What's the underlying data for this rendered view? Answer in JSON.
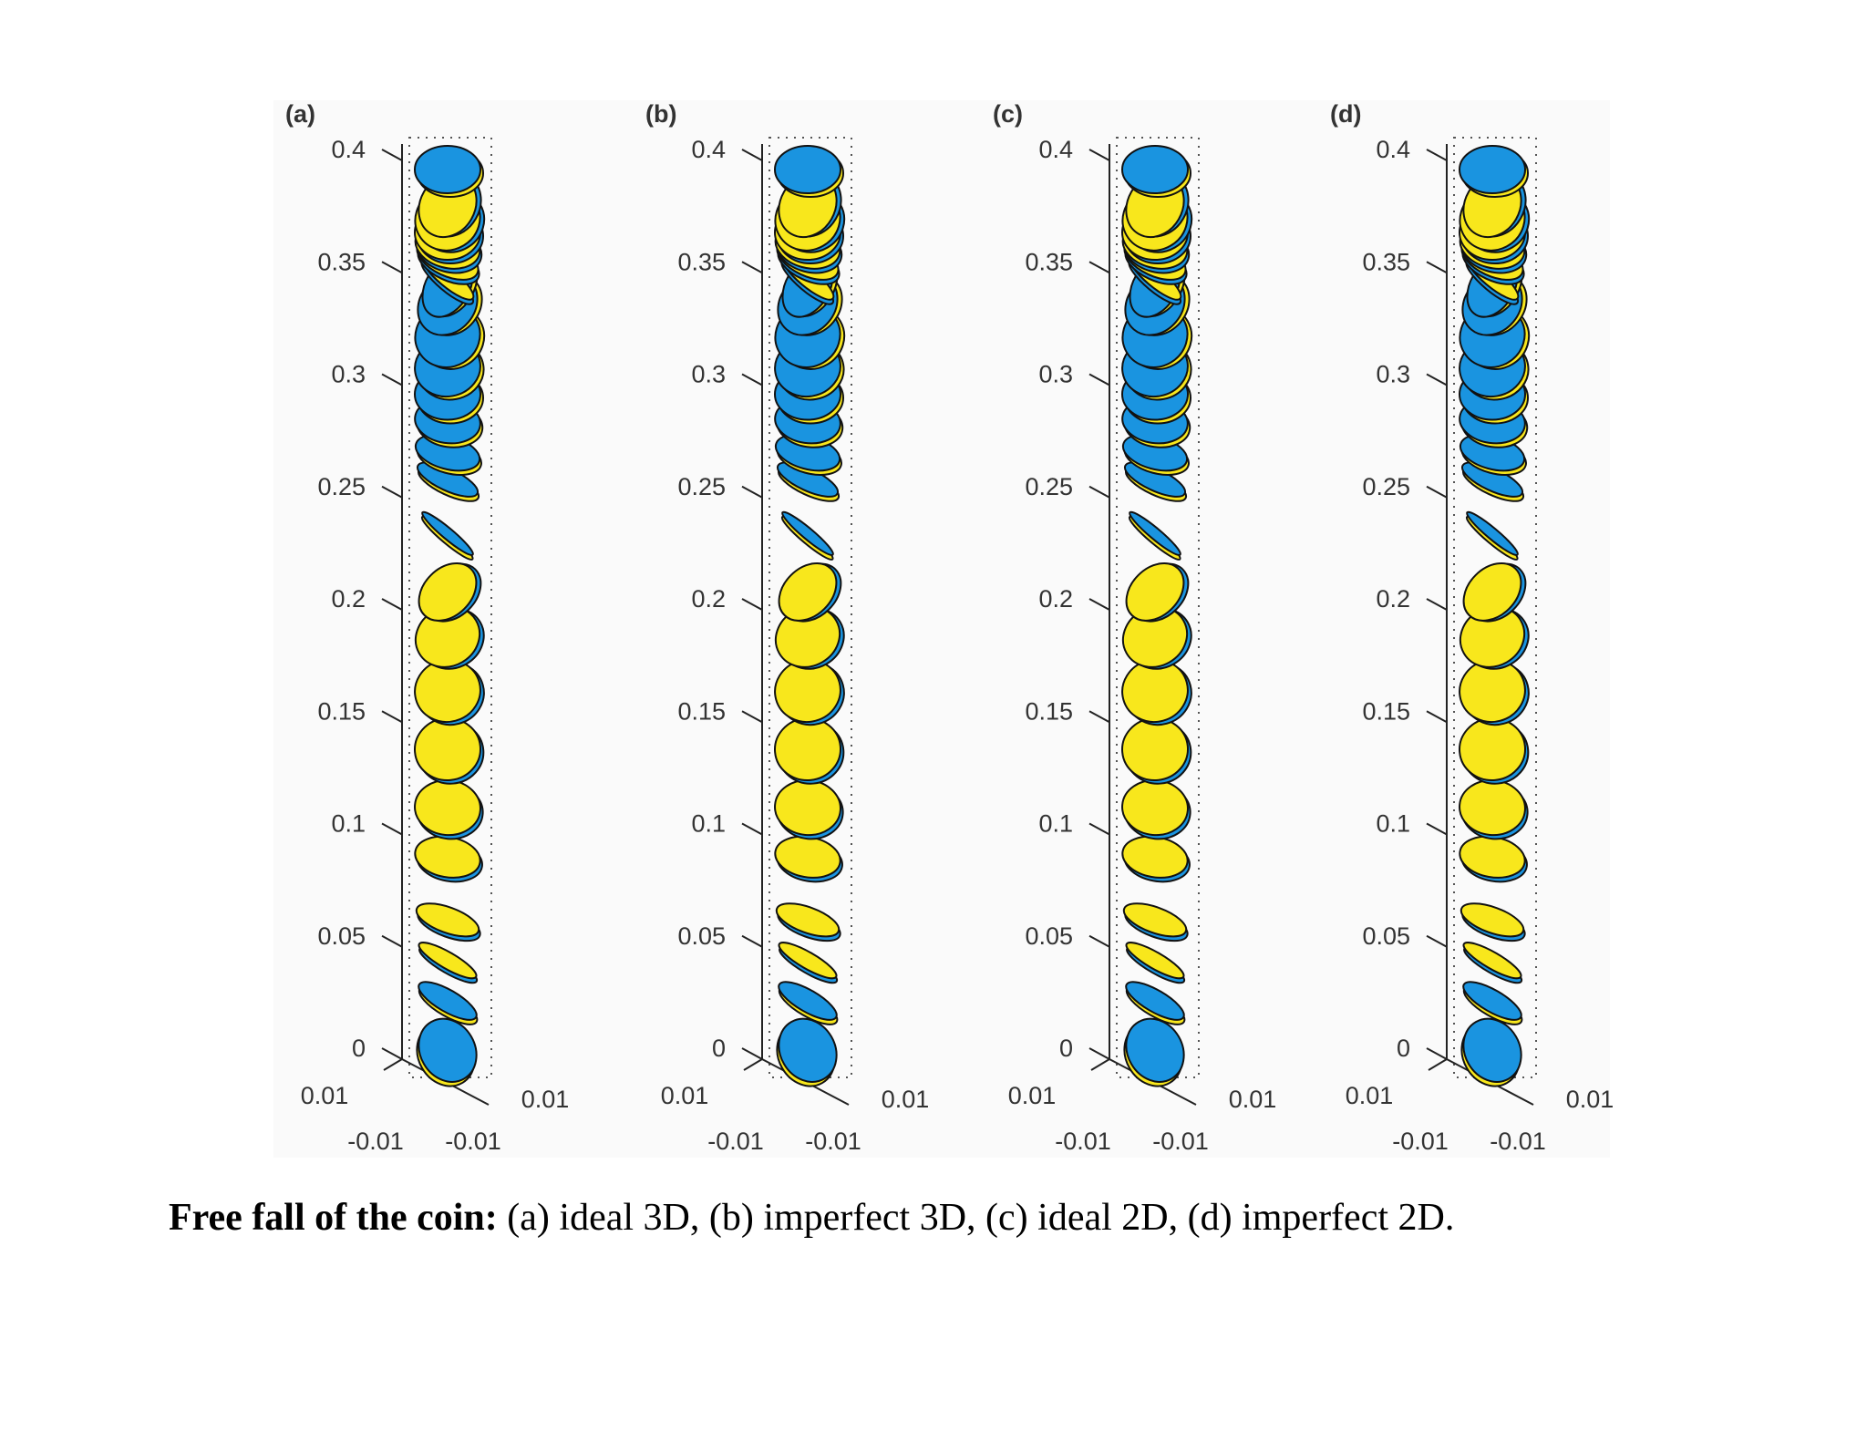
{
  "figure": {
    "panels": [
      {
        "label": "(a)",
        "ylim": [
          0,
          0.4
        ],
        "yticks": [
          0,
          0.05,
          0.1,
          0.15,
          0.2,
          0.25,
          0.3,
          0.35,
          0.4
        ],
        "xticks": [
          0.01,
          -0.01
        ],
        "zticks": [
          -0.01,
          0.01
        ]
      },
      {
        "label": "(b)",
        "ylim": [
          0,
          0.4
        ],
        "yticks": [
          0,
          0.05,
          0.1,
          0.15,
          0.2,
          0.25,
          0.3,
          0.35,
          0.4
        ],
        "xticks": [
          0.01,
          -0.01
        ],
        "zticks": [
          -0.01,
          0.01
        ]
      },
      {
        "label": "(c)",
        "ylim": [
          0,
          0.4
        ],
        "yticks": [
          0,
          0.05,
          0.1,
          0.15,
          0.2,
          0.25,
          0.3,
          0.35,
          0.4
        ],
        "xticks": [
          0.01,
          -0.01
        ],
        "zticks": [
          -0.01,
          0.01
        ]
      },
      {
        "label": "(d)",
        "ylim": [
          0,
          0.4
        ],
        "yticks": [
          0,
          0.05,
          0.1,
          0.15,
          0.2,
          0.25,
          0.3,
          0.35,
          0.4
        ],
        "xticks": [
          0.01,
          -0.01
        ],
        "zticks": [
          -0.01,
          0.01
        ]
      }
    ]
  },
  "caption": {
    "bold": "Free fall of the coin:",
    "text": "(a) ideal 3D, (b) imperfect 3D, (c) ideal 2D, (d) imperfect 2D."
  }
}
